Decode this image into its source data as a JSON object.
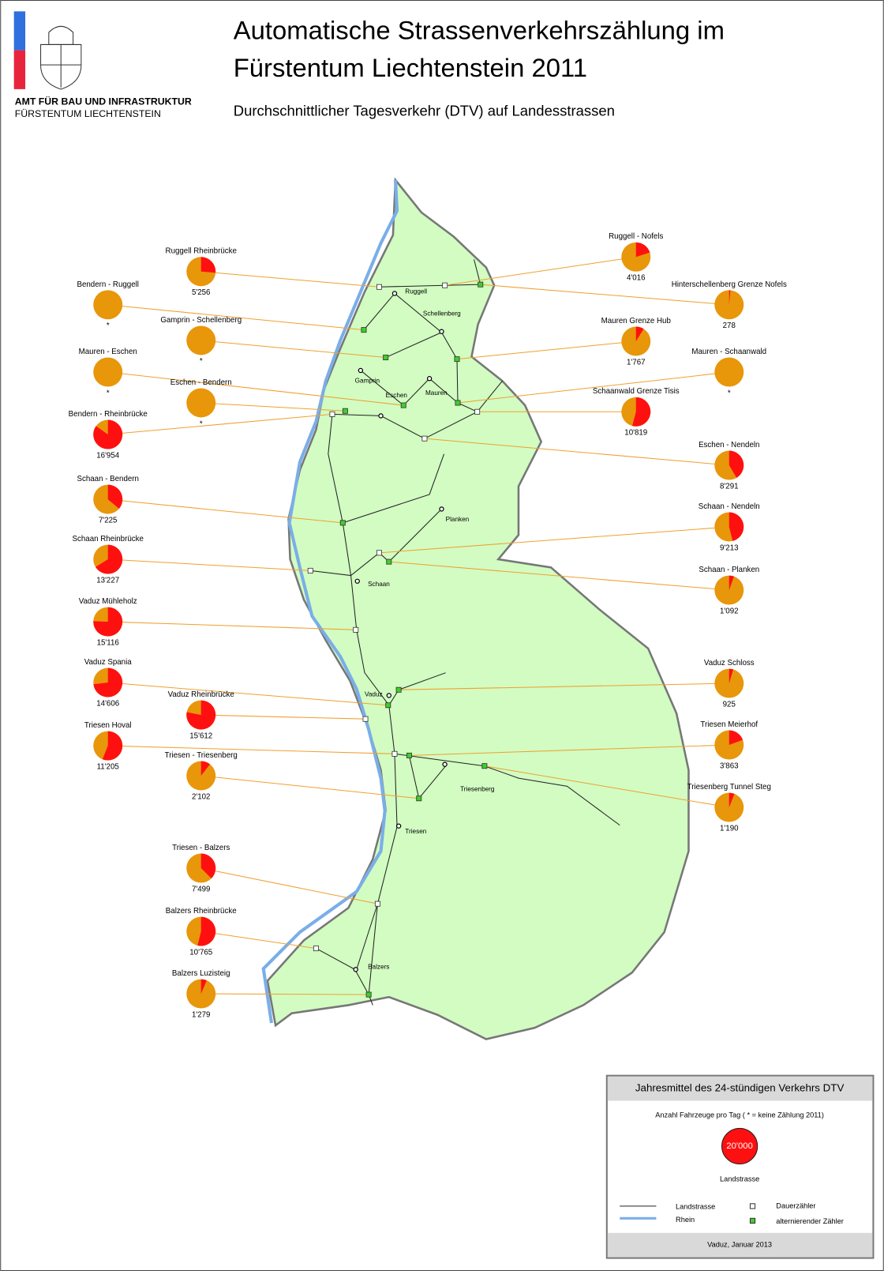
{
  "header": {
    "org_line1": "AMT FÜR BAU UND INFRASTRUKTUR",
    "org_line2": "FÜRSTENTUM LIECHTENSTEIN",
    "title_lines": [
      "Automatische Strassenverkehrszählung im",
      "Fürstentum Liechtenstein 2011"
    ],
    "subtitle": "Durchschnittlicher Tagesverkehr (DTV) auf Landesstrassen"
  },
  "map": {
    "stations": [
      {
        "name": "Ruggell Rheinbrücke",
        "value": 5256,
        "value_label": "5'256"
      },
      {
        "name": "Bendern - Ruggell",
        "value": null,
        "value_label": "*"
      },
      {
        "name": "Gamprin - Schellenberg",
        "value": null,
        "value_label": "*"
      },
      {
        "name": "Mauren - Eschen",
        "value": null,
        "value_label": "*"
      },
      {
        "name": "Eschen - Bendern",
        "value": null,
        "value_label": "*"
      },
      {
        "name": "Bendern - Rheinbrücke",
        "value": 16954,
        "value_label": "16'954"
      },
      {
        "name": "Schaan - Bendern",
        "value": 7225,
        "value_label": "7'225"
      },
      {
        "name": "Schaan Rheinbrücke",
        "value": 13227,
        "value_label": "13'227"
      },
      {
        "name": "Vaduz Mühleholz",
        "value": 15116,
        "value_label": "15'116"
      },
      {
        "name": "Vaduz Spania",
        "value": 14606,
        "value_label": "14'606"
      },
      {
        "name": "Vaduz Rheinbrücke",
        "value": 15612,
        "value_label": "15'612"
      },
      {
        "name": "Triesen Hoval",
        "value": 11205,
        "value_label": "11'205"
      },
      {
        "name": "Triesen - Triesenberg",
        "value": 2102,
        "value_label": "2'102"
      },
      {
        "name": "Triesen - Balzers",
        "value": 7499,
        "value_label": "7'499"
      },
      {
        "name": "Balzers Rheinbrücke",
        "value": 10765,
        "value_label": "10'765"
      },
      {
        "name": "Balzers Luzisteig",
        "value": 1279,
        "value_label": "1'279"
      },
      {
        "name": "Ruggell - Nofels",
        "value": 4016,
        "value_label": "4'016"
      },
      {
        "name": "Hinterschellenberg Grenze Nofels",
        "value": 278,
        "value_label": "278"
      },
      {
        "name": "Mauren Grenze Hub",
        "value": 1767,
        "value_label": "1'767"
      },
      {
        "name": "Mauren - Schaanwald",
        "value": null,
        "value_label": "*"
      },
      {
        "name": "Schaanwald Grenze Tisis",
        "value": 10819,
        "value_label": "10'819"
      },
      {
        "name": "Eschen - Nendeln",
        "value": 8291,
        "value_label": "8'291"
      },
      {
        "name": "Schaan - Nendeln",
        "value": 9213,
        "value_label": "9'213"
      },
      {
        "name": "Schaan - Planken",
        "value": 1092,
        "value_label": "1'092"
      },
      {
        "name": "Vaduz Schloss",
        "value": 925,
        "value_label": "925"
      },
      {
        "name": "Triesen Meierhof",
        "value": 3863,
        "value_label": "3'863"
      },
      {
        "name": "Triesenberg Tunnel Steg",
        "value": 1190,
        "value_label": "1'190"
      }
    ],
    "places": [
      "Ruggell",
      "Schellenberg",
      "Gamprin",
      "Eschen",
      "Mauren",
      "Planken",
      "Schaan",
      "Vaduz",
      "Triesenberg",
      "Triesen",
      "Balzers"
    ]
  },
  "legend": {
    "title": "Jahresmittel des 24-stündigen Verkehrs DTV",
    "subtitle": "Anzahl Fahrzeuge pro Tag  ( * = keine Zählung 2011)",
    "scale": {
      "value": 20000,
      "label": "20'000"
    },
    "scale_caption": "Landstrasse",
    "items": [
      "Landstrasse",
      "Rhein",
      "Dauerzähler",
      "alternierender Zähler"
    ],
    "footer": "Vaduz, Januar 2013"
  }
}
